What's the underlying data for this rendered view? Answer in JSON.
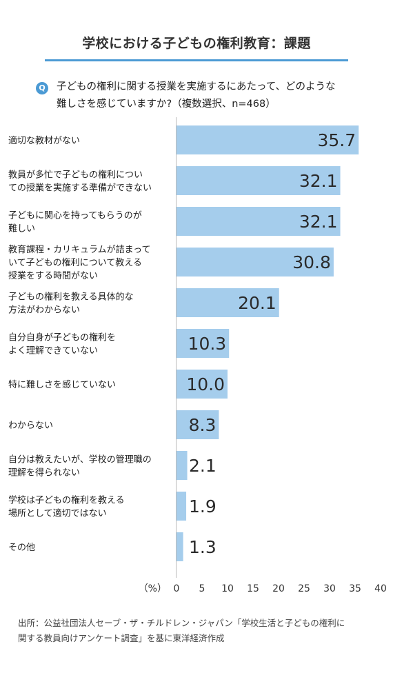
{
  "header": {
    "title": "学校における子どもの権利教育：課題",
    "question_badge": "Q",
    "question_line1": "子どもの権利に関する授業を実施するにあたって、どのような",
    "question_line2": "難しさを感じていますか?（複数選択、n=468）"
  },
  "chart_data": {
    "type": "bar",
    "orientation": "horizontal",
    "categories": [
      [
        "適切な教材がない"
      ],
      [
        "教員が多忙で子どもの権利につい",
        "ての授業を実施する準備ができない"
      ],
      [
        "子どもに関心を持ってもらうのが",
        "難しい"
      ],
      [
        "教育課程・カリキュラムが詰まって",
        "いて子どもの権利について教える",
        "授業をする時間がない"
      ],
      [
        "子どもの権利を教える具体的な",
        "方法がわからない"
      ],
      [
        "自分自身が子どもの権利を",
        "よく理解できていない"
      ],
      [
        "特に難しさを感じていない"
      ],
      [
        "わからない"
      ],
      [
        "自分は教えたいが、学校の管理職の",
        "理解を得られない"
      ],
      [
        "学校は子どもの権利を教える",
        "場所として適切ではない"
      ],
      [
        "その他"
      ]
    ],
    "values": [
      35.7,
      32.1,
      32.1,
      30.8,
      20.1,
      10.3,
      10.0,
      8.3,
      2.1,
      1.9,
      1.3
    ],
    "value_labels": [
      "35.7",
      "32.1",
      "32.1",
      "30.8",
      "20.1",
      "10.3",
      "10.0",
      "8.3",
      "2.1",
      "1.9",
      "1.3"
    ],
    "xlim": [
      0,
      40
    ],
    "xticks": [
      "0",
      "5",
      "10",
      "15",
      "20",
      "25",
      "30",
      "35",
      "40"
    ],
    "xunit": "（%）",
    "bar_color": "#a5cdec",
    "grid": false
  },
  "footer": {
    "source_line1": "出所：公益社団法人セーブ・ザ・チルドレン・ジャパン「学校生活と子どもの権利に",
    "source_line2": "関する教員向けアンケート調査」を基に東洋経済作成"
  },
  "colors": {
    "accent": "#4b9ad4",
    "bar": "#a5cdec"
  }
}
